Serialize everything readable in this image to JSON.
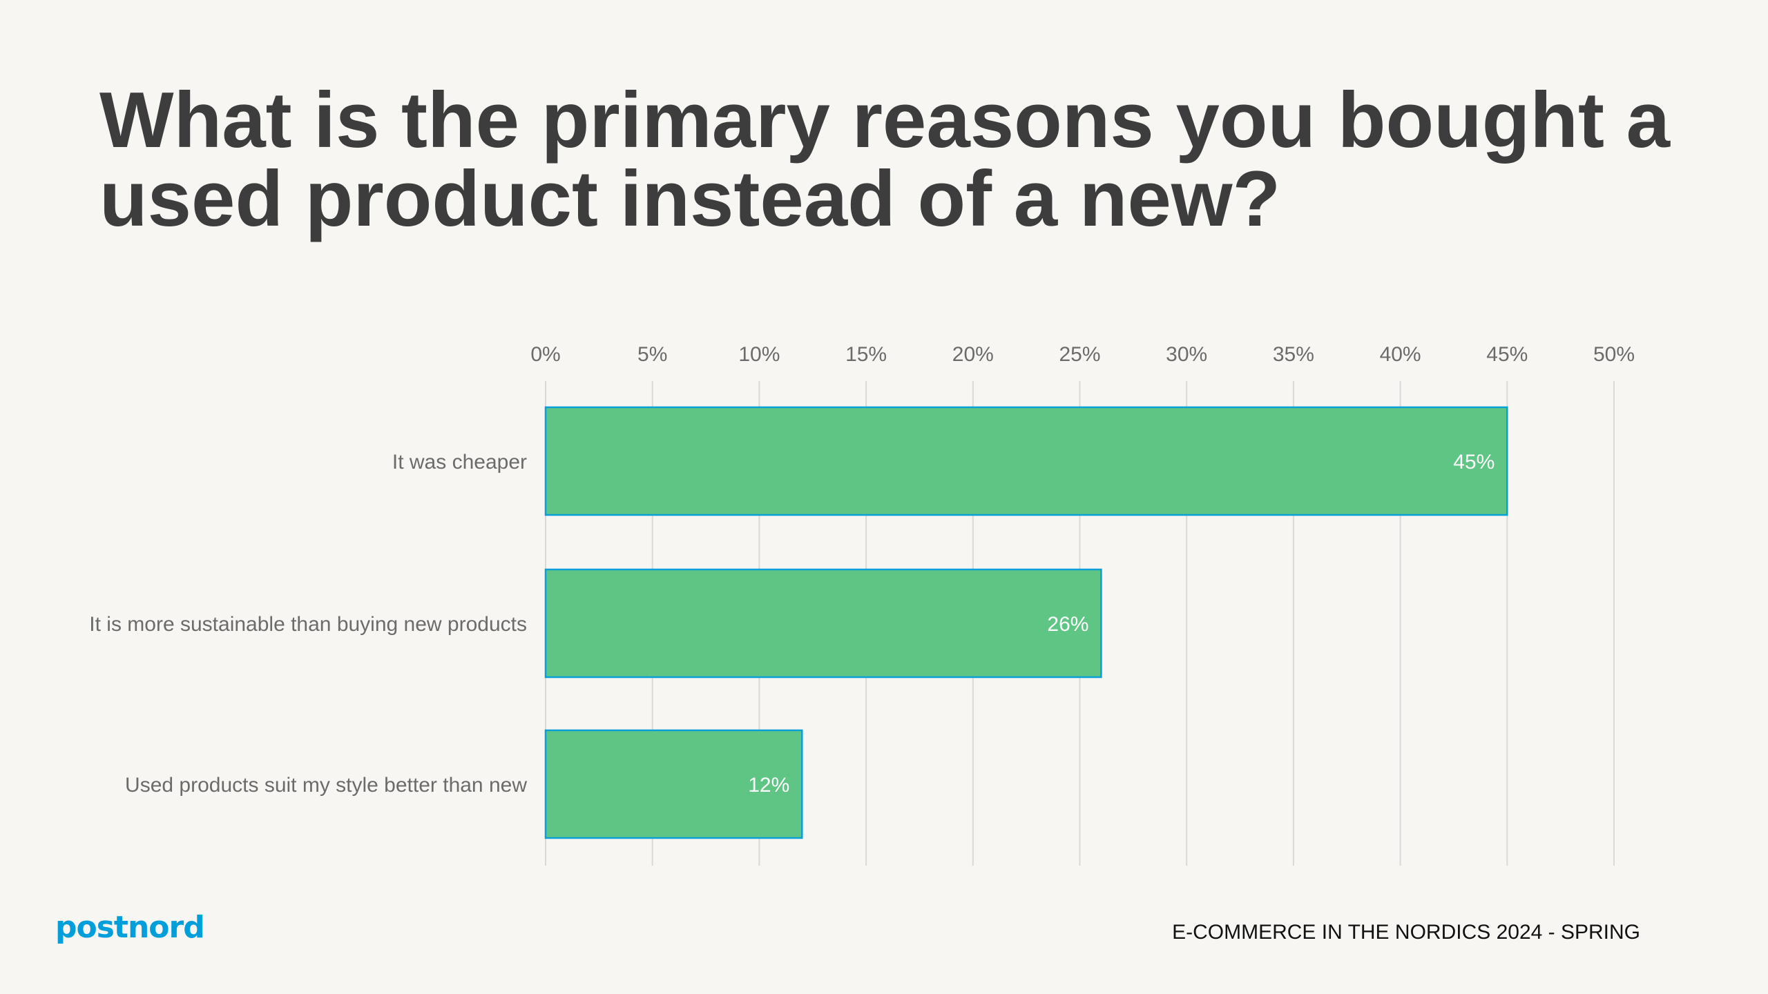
{
  "title": "What is the primary reasons you bought a used product instead of a new?",
  "chart_data": {
    "type": "bar",
    "orientation": "horizontal",
    "categories": [
      "It was cheaper",
      "It is more sustainable than buying new products",
      "Used products suit my style better than new"
    ],
    "values": [
      45,
      26,
      12
    ],
    "data_labels": [
      "45%",
      "26%",
      "12%"
    ],
    "xlim": [
      0,
      50
    ],
    "x_ticks": [
      "0%",
      "5%",
      "10%",
      "15%",
      "20%",
      "25%",
      "30%",
      "35%",
      "40%",
      "45%",
      "50%"
    ],
    "tick_position": "top",
    "grid": true,
    "bar_color": "#5fc584",
    "bar_border_color": "#0a9fd6"
  },
  "footer": {
    "logo": "postnord",
    "caption": "E-COMMERCE IN THE NORDICS 2024 - SPRING"
  },
  "colors": {
    "background": "#f7f6f3",
    "brand": "#009fdc"
  }
}
